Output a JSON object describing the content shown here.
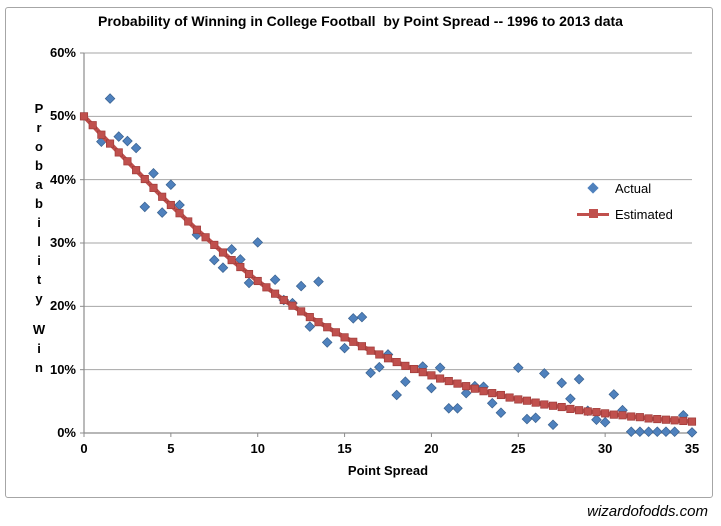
{
  "chart_data": {
    "type": "scatter",
    "title": "Probability of Winning in College Football  by Point Spread -- 1996 to 2013 data",
    "xlabel": "Point Spread",
    "ylabel": "Probability Win",
    "watermark": "wizardofodds.com",
    "xlim": [
      0,
      35
    ],
    "ylim": [
      0,
      60
    ],
    "x_ticks": [
      0,
      5,
      10,
      15,
      20,
      25,
      30,
      35
    ],
    "y_ticks": [
      {
        "value": 0,
        "label": "0%"
      },
      {
        "value": 10,
        "label": "10%"
      },
      {
        "value": 20,
        "label": "20%"
      },
      {
        "value": 30,
        "label": "30%"
      },
      {
        "value": 40,
        "label": "40%"
      },
      {
        "value": 50,
        "label": "50%"
      },
      {
        "value": 60,
        "label": "60%"
      }
    ],
    "grid": "horizontal",
    "legend_position": "middle-right",
    "colors": {
      "grid": "#A6A6A6",
      "axis": "#8C8C8C"
    },
    "series": [
      {
        "name": "Actual",
        "type": "scatter",
        "marker": "diamond",
        "color": "#4F81BD",
        "border": "#39618F",
        "points": [
          [
            1,
            46
          ],
          [
            1.5,
            52.8
          ],
          [
            2,
            46.8
          ],
          [
            2.5,
            46.1
          ],
          [
            3,
            45
          ],
          [
            3.5,
            35.7
          ],
          [
            4,
            41
          ],
          [
            4.5,
            34.8
          ],
          [
            5,
            39.2
          ],
          [
            5.5,
            36
          ],
          [
            6.5,
            31.3
          ],
          [
            7.5,
            27.3
          ],
          [
            8,
            26.1
          ],
          [
            8.5,
            29
          ],
          [
            9,
            27.4
          ],
          [
            9.5,
            23.7
          ],
          [
            10,
            30.1
          ],
          [
            11,
            24.2
          ],
          [
            11.5,
            21
          ],
          [
            12,
            20.5
          ],
          [
            12.5,
            23.2
          ],
          [
            13,
            16.8
          ],
          [
            13.5,
            23.9
          ],
          [
            14,
            14.3
          ],
          [
            15,
            13.4
          ],
          [
            15.5,
            18.1
          ],
          [
            16,
            18.3
          ],
          [
            16.5,
            9.5
          ],
          [
            17,
            10.4
          ],
          [
            17.5,
            12.4
          ],
          [
            18,
            6
          ],
          [
            18.5,
            8.1
          ],
          [
            19.5,
            10.5
          ],
          [
            20,
            7.1
          ],
          [
            20.5,
            10.3
          ],
          [
            21,
            3.9
          ],
          [
            21.5,
            3.9
          ],
          [
            22,
            6.3
          ],
          [
            22.5,
            7.4
          ],
          [
            23,
            7.3
          ],
          [
            23.5,
            4.7
          ],
          [
            24,
            3.2
          ],
          [
            25,
            10.3
          ],
          [
            25.5,
            2.2
          ],
          [
            26,
            2.4
          ],
          [
            26.5,
            9.4
          ],
          [
            27,
            1.3
          ],
          [
            27.5,
            7.9
          ],
          [
            28,
            5.4
          ],
          [
            28.5,
            8.5
          ],
          [
            29,
            3.5
          ],
          [
            29.5,
            2.1
          ],
          [
            30,
            1.7
          ],
          [
            30.5,
            6.1
          ],
          [
            31,
            3.6
          ],
          [
            31.5,
            0.2
          ],
          [
            32,
            0.2
          ],
          [
            32.5,
            0.2
          ],
          [
            33,
            0.2
          ],
          [
            33.5,
            0.2
          ],
          [
            34,
            0.2
          ],
          [
            34.5,
            2.8
          ],
          [
            35,
            0.1
          ]
        ]
      },
      {
        "name": "Estimated",
        "type": "line",
        "marker": "square",
        "color": "#C0504D",
        "border": "#9E3A38",
        "points": [
          [
            0,
            50
          ],
          [
            0.5,
            48.6
          ],
          [
            1,
            47.1
          ],
          [
            1.5,
            45.7
          ],
          [
            2,
            44.3
          ],
          [
            2.5,
            42.9
          ],
          [
            3,
            41.5
          ],
          [
            3.5,
            40.1
          ],
          [
            4,
            38.7
          ],
          [
            4.5,
            37.3
          ],
          [
            5,
            36
          ],
          [
            5.5,
            34.7
          ],
          [
            6,
            33.4
          ],
          [
            6.5,
            32.1
          ],
          [
            7,
            30.9
          ],
          [
            7.5,
            29.7
          ],
          [
            8,
            28.5
          ],
          [
            8.5,
            27.3
          ],
          [
            9,
            26.2
          ],
          [
            9.5,
            25.1
          ],
          [
            10,
            24
          ],
          [
            10.5,
            23
          ],
          [
            11,
            22
          ],
          [
            11.5,
            21
          ],
          [
            12,
            20.1
          ],
          [
            12.5,
            19.2
          ],
          [
            13,
            18.3
          ],
          [
            13.5,
            17.5
          ],
          [
            14,
            16.7
          ],
          [
            14.5,
            15.9
          ],
          [
            15,
            15.1
          ],
          [
            15.5,
            14.4
          ],
          [
            16,
            13.7
          ],
          [
            16.5,
            13
          ],
          [
            17,
            12.4
          ],
          [
            17.5,
            11.8
          ],
          [
            18,
            11.2
          ],
          [
            18.5,
            10.6
          ],
          [
            19,
            10.1
          ],
          [
            19.5,
            9.6
          ],
          [
            20,
            9.1
          ],
          [
            20.5,
            8.6
          ],
          [
            21,
            8.2
          ],
          [
            21.5,
            7.8
          ],
          [
            22,
            7.4
          ],
          [
            22.5,
            7
          ],
          [
            23,
            6.6
          ],
          [
            23.5,
            6.3
          ],
          [
            24,
            6
          ],
          [
            24.5,
            5.6
          ],
          [
            25,
            5.3
          ],
          [
            25.5,
            5.1
          ],
          [
            26,
            4.8
          ],
          [
            26.5,
            4.5
          ],
          [
            27,
            4.3
          ],
          [
            27.5,
            4.1
          ],
          [
            28,
            3.8
          ],
          [
            28.5,
            3.6
          ],
          [
            29,
            3.4
          ],
          [
            29.5,
            3.3
          ],
          [
            30,
            3.1
          ],
          [
            30.5,
            2.9
          ],
          [
            31,
            2.8
          ],
          [
            31.5,
            2.6
          ],
          [
            32,
            2.5
          ],
          [
            32.5,
            2.3
          ],
          [
            33,
            2.2
          ],
          [
            33.5,
            2.1
          ],
          [
            34,
            2
          ],
          [
            34.5,
            1.9
          ],
          [
            35,
            1.8
          ]
        ]
      }
    ]
  }
}
